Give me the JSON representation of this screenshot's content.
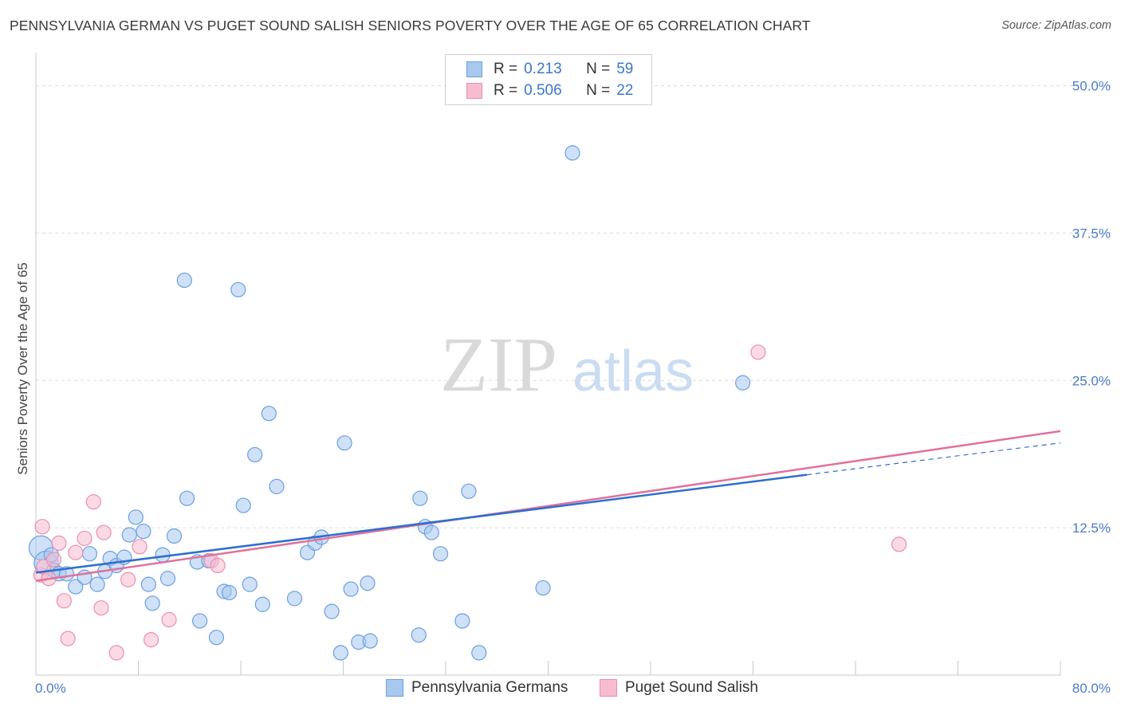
{
  "title": "PENNSYLVANIA GERMAN VS PUGET SOUND SALISH SENIORS POVERTY OVER THE AGE OF 65 CORRELATION CHART",
  "source": "Source: ZipAtlas.com",
  "watermark": {
    "zip": "ZIP",
    "atlas": "atlas"
  },
  "legend": {
    "rows": [
      {
        "r_label": "R =",
        "r_value": "0.213",
        "n_label": "N =",
        "n_value": "59"
      },
      {
        "r_label": "R =",
        "r_value": "0.506",
        "n_label": "N =",
        "n_value": "22"
      }
    ]
  },
  "bottom_legend": [
    "Pennsylvania Germans",
    "Puget Sound Salish"
  ],
  "colors": {
    "blue_fill": "#a8c8f0",
    "blue_stroke": "#6b9fe0",
    "blue_line": "#2f6fce",
    "pink_fill": "#f7bcd0",
    "pink_stroke": "#ea8fae",
    "pink_line": "#e0719b",
    "tick_text": "#4a7cc7",
    "grid": "#dcdcdc"
  },
  "chart_data": {
    "type": "scatter",
    "title": "PENNSYLVANIA GERMAN VS PUGET SOUND SALISH SENIORS POVERTY OVER THE AGE OF 65 CORRELATION CHART",
    "xlabel": "",
    "ylabel": "Seniors Poverty Over the Age of 65",
    "xlim": [
      0,
      80
    ],
    "ylim": [
      0,
      52
    ],
    "x_tick_labels": [
      "0.0%",
      "80.0%"
    ],
    "y_ticks": [
      12.5,
      25.0,
      37.5,
      50.0
    ],
    "y_tick_labels": [
      "12.5%",
      "25.0%",
      "37.5%",
      "50.0%"
    ],
    "grid": true,
    "legend_position": "top-center",
    "series": [
      {
        "name": "Pennsylvania Germans",
        "points": [
          [
            0.4,
            10.8
          ],
          [
            0.8,
            9.5
          ],
          [
            1.2,
            10.2
          ],
          [
            1.4,
            8.9
          ],
          [
            1.8,
            8.6
          ],
          [
            2.4,
            8.6
          ],
          [
            3.1,
            7.5
          ],
          [
            3.8,
            8.3
          ],
          [
            4.2,
            10.3
          ],
          [
            4.8,
            7.7
          ],
          [
            5.4,
            8.8
          ],
          [
            5.8,
            9.9
          ],
          [
            6.3,
            9.3
          ],
          [
            6.9,
            10.0
          ],
          [
            7.3,
            11.9
          ],
          [
            7.8,
            13.4
          ],
          [
            8.4,
            12.2
          ],
          [
            8.8,
            7.7
          ],
          [
            9.1,
            6.1
          ],
          [
            9.9,
            10.2
          ],
          [
            10.3,
            8.2
          ],
          [
            10.8,
            11.8
          ],
          [
            11.6,
            33.5
          ],
          [
            11.8,
            15.0
          ],
          [
            12.6,
            9.6
          ],
          [
            12.8,
            4.6
          ],
          [
            13.5,
            9.7
          ],
          [
            14.1,
            3.2
          ],
          [
            14.7,
            7.1
          ],
          [
            15.1,
            7.0
          ],
          [
            15.8,
            32.7
          ],
          [
            16.2,
            14.4
          ],
          [
            16.7,
            7.7
          ],
          [
            17.1,
            18.7
          ],
          [
            17.7,
            6.0
          ],
          [
            18.2,
            22.2
          ],
          [
            18.8,
            16.0
          ],
          [
            20.2,
            6.5
          ],
          [
            21.2,
            10.4
          ],
          [
            21.8,
            11.2
          ],
          [
            22.3,
            11.7
          ],
          [
            23.1,
            5.4
          ],
          [
            23.8,
            1.9
          ],
          [
            24.1,
            19.7
          ],
          [
            24.6,
            7.3
          ],
          [
            25.2,
            2.8
          ],
          [
            25.9,
            7.8
          ],
          [
            26.1,
            2.9
          ],
          [
            29.9,
            3.4
          ],
          [
            30.4,
            12.6
          ],
          [
            30.9,
            12.1
          ],
          [
            31.6,
            10.3
          ],
          [
            33.3,
            4.6
          ],
          [
            33.8,
            15.6
          ],
          [
            34.6,
            1.9
          ],
          [
            39.6,
            7.4
          ],
          [
            41.9,
            44.3
          ],
          [
            55.2,
            24.8
          ],
          [
            30.0,
            15.0
          ]
        ],
        "trend": {
          "x0": 0,
          "y0": 8.7,
          "x1": 60.2,
          "y1": 17.0,
          "dashed_to_x": 80,
          "dashed_to_y": 19.7
        }
      },
      {
        "name": "Puget Sound Salish",
        "points": [
          [
            0.4,
            8.5
          ],
          [
            0.5,
            12.6
          ],
          [
            0.6,
            9.2
          ],
          [
            1.0,
            8.2
          ],
          [
            1.4,
            9.8
          ],
          [
            1.8,
            11.2
          ],
          [
            2.2,
            6.3
          ],
          [
            2.5,
            3.1
          ],
          [
            3.1,
            10.4
          ],
          [
            3.8,
            11.6
          ],
          [
            4.5,
            14.7
          ],
          [
            5.1,
            5.7
          ],
          [
            5.3,
            12.1
          ],
          [
            6.3,
            1.9
          ],
          [
            7.2,
            8.1
          ],
          [
            8.1,
            10.9
          ],
          [
            9.0,
            3.0
          ],
          [
            10.4,
            4.7
          ],
          [
            13.7,
            9.7
          ],
          [
            14.2,
            9.3
          ],
          [
            56.4,
            27.4
          ],
          [
            67.4,
            11.1
          ]
        ],
        "trend": {
          "x0": 0,
          "y0": 8.0,
          "x1": 80,
          "y1": 20.7
        }
      }
    ]
  }
}
